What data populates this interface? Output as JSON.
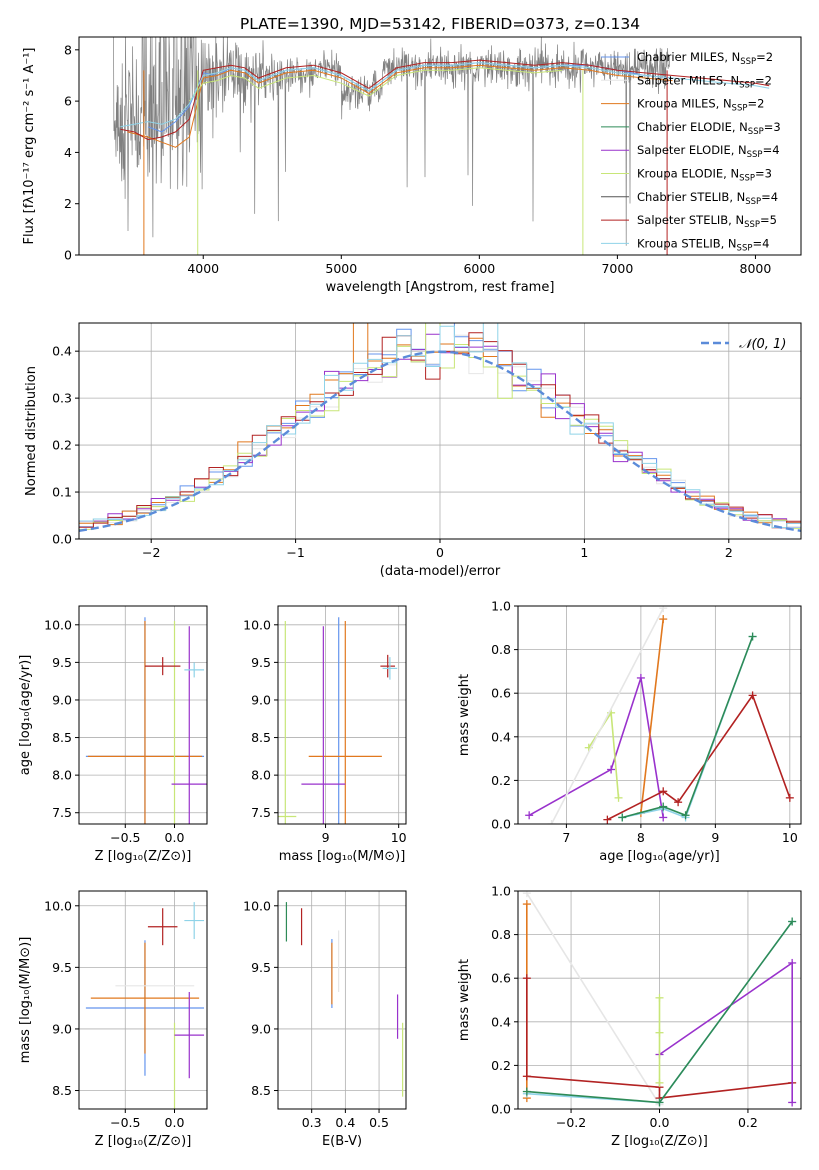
{
  "title": "PLATE=1390, MJD=53142, FIBERID=0373, z=0.134",
  "series": [
    {
      "name": "Chabrier MILES, N$_{SSP}$=2",
      "label": "Chabrier MILES, N",
      "sub": "SSP",
      "tail": "=2",
      "color": "#6495ed"
    },
    {
      "name": "Salpeter MILES, N$_{SSP}$=2",
      "label": "Salpeter MILES, N",
      "sub": "SSP",
      "tail": "=2",
      "color": "#e6e6e6"
    },
    {
      "name": "Kroupa MILES, N$_{SSP}$=2",
      "label": "Kroupa MILES, N",
      "sub": "SSP",
      "tail": "=2",
      "color": "#e1781e"
    },
    {
      "name": "Chabrier ELODIE, N$_{SSP}$=3",
      "label": "Chabrier ELODIE, N",
      "sub": "SSP",
      "tail": "=3",
      "color": "#2e8b57"
    },
    {
      "name": "Salpeter ELODIE, N$_{SSP}$=4",
      "label": "Salpeter ELODIE, N",
      "sub": "SSP",
      "tail": "=4",
      "color": "#9932cc"
    },
    {
      "name": "Kroupa ELODIE, N$_{SSP}$=3",
      "label": "Kroupa ELODIE, N",
      "sub": "SSP",
      "tail": "=3",
      "color": "#c8e678"
    },
    {
      "name": "Chabrier STELIB, N$_{SSP}$=4",
      "label": "Chabrier STELIB, N",
      "sub": "SSP",
      "tail": "=4",
      "color": "#555555"
    },
    {
      "name": "Salpeter STELIB, N$_{SSP}$=5",
      "label": "Salpeter STELIB, N",
      "sub": "SSP",
      "tail": "=5",
      "color": "#b22222"
    },
    {
      "name": "Kroupa STELIB, N$_{SSP}$=4",
      "label": "Kroupa STELIB, N",
      "sub": "SSP",
      "tail": "=4",
      "color": "#8fd3e8"
    }
  ],
  "chart_data": [
    {
      "id": "spectrum",
      "type": "line",
      "xlabel": "wavelength [Angstrom, rest frame]",
      "ylabel": "Flux [fλ10⁻¹⁷ erg cm⁻² s⁻¹ A⁻¹]",
      "xlim": [
        3100,
        8330
      ],
      "ylim": [
        0,
        8.5
      ],
      "xticks": [
        4000,
        5000,
        6000,
        7000,
        8000
      ],
      "yticks": [
        0,
        2,
        4,
        6,
        8
      ],
      "grid": false,
      "legend": "right",
      "data_color": "#808080",
      "models": [
        {
          "series": 0,
          "x": [
            3600,
            3700,
            3800,
            3900,
            4000,
            4100,
            4200,
            4300,
            4400,
            4600,
            4800,
            5000,
            5200,
            5400,
            5600,
            5800,
            6000,
            6200,
            6400,
            6600,
            6800,
            7000,
            7200,
            7400
          ],
          "y": [
            5.0,
            4.8,
            5.2,
            5.8,
            7.1,
            7.0,
            7.3,
            7.2,
            6.8,
            7.2,
            7.3,
            7.0,
            6.4,
            7.2,
            7.4,
            7.4,
            7.5,
            7.4,
            7.3,
            7.4,
            7.4,
            7.2,
            7.0,
            6.9
          ]
        },
        {
          "series": 2,
          "x": [
            3450,
            3600,
            3700,
            3800,
            3900,
            4000,
            4100,
            4200,
            4300,
            4400,
            4600,
            4800,
            5000,
            5200,
            5400,
            5600,
            5800,
            6000,
            6200,
            6400,
            6600,
            6800,
            7000,
            7200,
            7400
          ],
          "y": [
            4.8,
            4.6,
            4.4,
            4.2,
            4.6,
            6.9,
            7.0,
            7.2,
            7.1,
            6.7,
            7.1,
            7.2,
            6.9,
            6.3,
            7.1,
            7.3,
            7.3,
            7.4,
            7.3,
            7.2,
            7.3,
            7.2,
            7.0,
            6.9,
            6.8
          ]
        },
        {
          "series": 5,
          "x": [
            3900,
            4000,
            4100,
            4200,
            4300,
            4400,
            4600,
            4800,
            5000,
            5200,
            5400,
            5600,
            5800,
            6000,
            6200,
            6400,
            6600
          ],
          "y": [
            6.0,
            6.7,
            6.8,
            7.0,
            6.9,
            6.5,
            6.9,
            7.0,
            6.7,
            6.2,
            7.0,
            7.2,
            7.2,
            7.3,
            7.2,
            7.1,
            7.2
          ]
        },
        {
          "series": 7,
          "x": [
            3400,
            3500,
            3600,
            3700,
            3800,
            3900,
            4000,
            4100,
            4200,
            4300,
            4400,
            4600,
            4800,
            5000,
            5200,
            5400,
            5600,
            5800,
            6000,
            6200,
            6400,
            6600,
            6800,
            7000,
            7200,
            7400,
            7600,
            7800,
            8000,
            8100
          ],
          "y": [
            4.9,
            4.8,
            4.5,
            4.6,
            4.8,
            5.3,
            7.2,
            7.3,
            7.4,
            7.3,
            6.9,
            7.3,
            7.4,
            7.1,
            6.5,
            7.3,
            7.5,
            7.5,
            7.6,
            7.5,
            7.4,
            7.5,
            7.4,
            7.2,
            7.1,
            7.0,
            6.9,
            6.8,
            6.7,
            6.6
          ]
        },
        {
          "series": 8,
          "x": [
            3400,
            3500,
            3600,
            3700,
            3800,
            3900,
            4000,
            4100,
            4200,
            4300,
            4400,
            4600,
            4800,
            5000,
            5200,
            5400,
            5600,
            5800,
            6000,
            6200,
            6400,
            6600,
            6800,
            7000,
            7200,
            7400,
            7600,
            7800,
            8000,
            8100
          ],
          "y": [
            5.0,
            5.1,
            5.2,
            5.1,
            5.3,
            5.9,
            7.0,
            7.1,
            7.3,
            7.2,
            6.8,
            7.2,
            7.3,
            7.0,
            6.4,
            7.2,
            7.4,
            7.4,
            7.5,
            7.4,
            7.3,
            7.4,
            7.3,
            7.1,
            7.0,
            6.9,
            6.8,
            6.7,
            6.6,
            6.5
          ]
        }
      ]
    },
    {
      "id": "residuals",
      "type": "bar",
      "xlabel": "(data-model)/error",
      "ylabel": "Normed distribution",
      "xlim": [
        -2.5,
        2.5
      ],
      "ylim": [
        0,
        0.46
      ],
      "xticks": [
        -2,
        -1,
        0,
        1,
        2
      ],
      "yticks": [
        0.0,
        0.1,
        0.2,
        0.3,
        0.4
      ],
      "grid": true,
      "legend": "top-right",
      "reference_label": "𝒩(0, 1)",
      "reference_color": "#5b8bd9",
      "bin_width": 0.1,
      "note": "step histograms of (data-model)/error for each fit, overlaid with the standard normal curve"
    },
    {
      "id": "age-vs-Z",
      "type": "scatter",
      "xlabel": "Z [log₁₀(Z/Z⊙)]",
      "ylabel": "age  [log₁₀(age/yr)]",
      "xlim": [
        -0.97,
        0.33
      ],
      "ylim": [
        7.35,
        10.25
      ],
      "xticks": [
        -0.5,
        0.0
      ],
      "yticks": [
        7.5,
        8.0,
        8.5,
        9.0,
        9.5,
        10.0
      ],
      "grid": true,
      "points": [
        {
          "series": 0,
          "x": -0.3,
          "y": 8.25,
          "xerr": 0.6,
          "yerr": 1.85
        },
        {
          "series": 2,
          "x": -0.3,
          "y": 8.25,
          "xerr": 0.58,
          "yerr": 1.8
        },
        {
          "series": 5,
          "x": 0.0,
          "y": 7.45,
          "xerr": 0.0,
          "yerr": 2.6
        },
        {
          "series": 4,
          "x": 0.15,
          "y": 7.88,
          "xerr": 0.18,
          "yerr": 2.1
        },
        {
          "series": 7,
          "x": -0.12,
          "y": 9.45,
          "xerr": 0.18,
          "yerr": 0.12
        },
        {
          "series": 8,
          "x": 0.2,
          "y": 9.4,
          "xerr": 0.1,
          "yerr": 0.1
        }
      ]
    },
    {
      "id": "age-vs-mass",
      "type": "scatter",
      "xlabel": "mass [log₁₀(M/M⊙)]",
      "ylabel": "",
      "xlim": [
        8.35,
        10.1
      ],
      "ylim": [
        7.35,
        10.25
      ],
      "xticks": [
        9,
        10
      ],
      "yticks": [
        7.5,
        8.0,
        8.5,
        9.0,
        9.5,
        10.0
      ],
      "grid": true,
      "points": [
        {
          "series": 0,
          "x": 9.18,
          "y": 8.25,
          "xerr": 0.0,
          "yerr": 1.85
        },
        {
          "series": 2,
          "x": 9.27,
          "y": 8.25,
          "xerr": 0.5,
          "yerr": 1.8
        },
        {
          "series": 5,
          "x": 8.45,
          "y": 7.45,
          "xerr": 0.15,
          "yerr": 2.6
        },
        {
          "series": 4,
          "x": 8.97,
          "y": 7.88,
          "xerr": 0.3,
          "yerr": 2.1
        },
        {
          "series": 7,
          "x": 9.85,
          "y": 9.45,
          "xerr": 0.1,
          "yerr": 0.15
        },
        {
          "series": 8,
          "x": 9.88,
          "y": 9.42,
          "xerr": 0.1,
          "yerr": 0.15
        }
      ]
    },
    {
      "id": "weight-vs-age",
      "type": "line",
      "xlabel": "age  [log₁₀(age/yr)]",
      "ylabel": "mass weight",
      "xlim": [
        6.35,
        10.15
      ],
      "ylim": [
        0,
        1
      ],
      "xticks": [
        7,
        8,
        9,
        10
      ],
      "yticks": [
        0.0,
        0.2,
        0.4,
        0.6,
        0.8,
        1.0
      ],
      "grid": true,
      "lines": [
        {
          "series": 4,
          "x": [
            6.5,
            7.6,
            8.0,
            8.3
          ],
          "y": [
            0.04,
            0.25,
            0.67,
            0.03
          ]
        },
        {
          "series": 5,
          "x": [
            7.3,
            7.6,
            7.7
          ],
          "y": [
            0.35,
            0.51,
            0.12
          ]
        },
        {
          "series": 1,
          "x": [
            6.8,
            8.3
          ],
          "y": [
            0.0,
            0.99
          ]
        },
        {
          "series": 2,
          "x": [
            8.0,
            8.3
          ],
          "y": [
            0.05,
            0.94
          ]
        },
        {
          "series": 7,
          "x": [
            7.55,
            8.3,
            8.5,
            9.5,
            10.0
          ],
          "y": [
            0.02,
            0.15,
            0.1,
            0.59,
            0.12
          ]
        },
        {
          "series": 8,
          "x": [
            7.75,
            8.3,
            8.6,
            9.5
          ],
          "y": [
            0.03,
            0.07,
            0.03,
            0.86
          ]
        },
        {
          "series": 3,
          "x": [
            7.75,
            8.3,
            8.6,
            9.5
          ],
          "y": [
            0.03,
            0.08,
            0.04,
            0.86
          ]
        }
      ]
    },
    {
      "id": "mass-vs-Z",
      "type": "scatter",
      "xlabel": "Z [log₁₀(Z/Z⊙)]",
      "ylabel": "mass [log₁₀(M/M⊙)]",
      "xlim": [
        -0.97,
        0.33
      ],
      "ylim": [
        8.35,
        10.12
      ],
      "xticks": [
        -0.5,
        0.0
      ],
      "yticks": [
        8.5,
        9.0,
        9.5,
        10.0
      ],
      "grid": true,
      "points": [
        {
          "series": 0,
          "x": -0.3,
          "y": 9.17,
          "xerr": 0.6,
          "yerr": 0.55
        },
        {
          "series": 2,
          "x": -0.3,
          "y": 9.25,
          "xerr": 0.55,
          "yerr": 0.45
        },
        {
          "series": 1,
          "x": -0.2,
          "y": 9.35,
          "xerr": 0.4,
          "yerr": 0.0
        },
        {
          "series": 5,
          "x": 0.0,
          "y": 8.45,
          "xerr": 0.0,
          "yerr": 0.6
        },
        {
          "series": 4,
          "x": 0.15,
          "y": 8.95,
          "xerr": 0.15,
          "yerr": 0.35
        },
        {
          "series": 7,
          "x": -0.12,
          "y": 9.83,
          "xerr": 0.15,
          "yerr": 0.15
        },
        {
          "series": 8,
          "x": 0.2,
          "y": 9.88,
          "xerr": 0.1,
          "yerr": 0.15
        }
      ]
    },
    {
      "id": "mass-vs-EBV",
      "type": "scatter",
      "xlabel": "E(B-V)",
      "ylabel": "",
      "xlim": [
        0.2,
        0.58
      ],
      "ylim": [
        8.35,
        10.12
      ],
      "xticks": [
        0.3,
        0.4,
        0.5
      ],
      "yticks": [
        8.5,
        9.0,
        9.5,
        10.0
      ],
      "grid": true,
      "points": [
        {
          "series": 3,
          "x": 0.225,
          "y": 9.87,
          "xerr": 0.0,
          "yerr": 0.16
        },
        {
          "series": 7,
          "x": 0.27,
          "y": 9.83,
          "xerr": 0.0,
          "yerr": 0.15
        },
        {
          "series": 0,
          "x": 0.36,
          "y": 9.45,
          "xerr": 0.0,
          "yerr": 0.28
        },
        {
          "series": 2,
          "x": 0.36,
          "y": 9.45,
          "xerr": 0.0,
          "yerr": 0.25
        },
        {
          "series": 1,
          "x": 0.38,
          "y": 9.55,
          "xerr": 0.0,
          "yerr": 0.25
        },
        {
          "series": 4,
          "x": 0.555,
          "y": 9.1,
          "xerr": 0.0,
          "yerr": 0.18
        },
        {
          "series": 5,
          "x": 0.57,
          "y": 8.75,
          "xerr": 0.0,
          "yerr": 0.3
        }
      ]
    },
    {
      "id": "weight-vs-Z",
      "type": "line",
      "xlabel": "Z [log₁₀(Z/Z⊙)]",
      "ylabel": "mass weight",
      "xlim": [
        -0.32,
        0.32
      ],
      "ylim": [
        0,
        1
      ],
      "xticks": [
        -0.2,
        0.0,
        0.2
      ],
      "yticks": [
        0.0,
        0.2,
        0.4,
        0.6,
        0.8,
        1.0
      ],
      "grid": true,
      "lines": [
        {
          "series": 1,
          "x": [
            -0.3,
            0.0
          ],
          "y": [
            0.99,
            0.02
          ]
        },
        {
          "series": 2,
          "x": [
            -0.3,
            -0.3
          ],
          "y": [
            0.94,
            0.05
          ]
        },
        {
          "series": 7,
          "x": [
            -0.3,
            -0.3,
            0.0,
            0.0,
            0.3
          ],
          "y": [
            0.6,
            0.15,
            0.1,
            0.05,
            0.12
          ]
        },
        {
          "series": 4,
          "x": [
            0.0,
            0.3,
            0.3
          ],
          "y": [
            0.25,
            0.67,
            0.03
          ]
        },
        {
          "series": 5,
          "x": [
            0.0,
            0.0,
            0.0
          ],
          "y": [
            0.51,
            0.35,
            0.12
          ]
        },
        {
          "series": 8,
          "x": [
            -0.3,
            0.0,
            0.3
          ],
          "y": [
            0.07,
            0.03,
            0.86
          ]
        },
        {
          "series": 3,
          "x": [
            -0.3,
            0.0,
            0.3
          ],
          "y": [
            0.08,
            0.03,
            0.86
          ]
        }
      ]
    }
  ]
}
